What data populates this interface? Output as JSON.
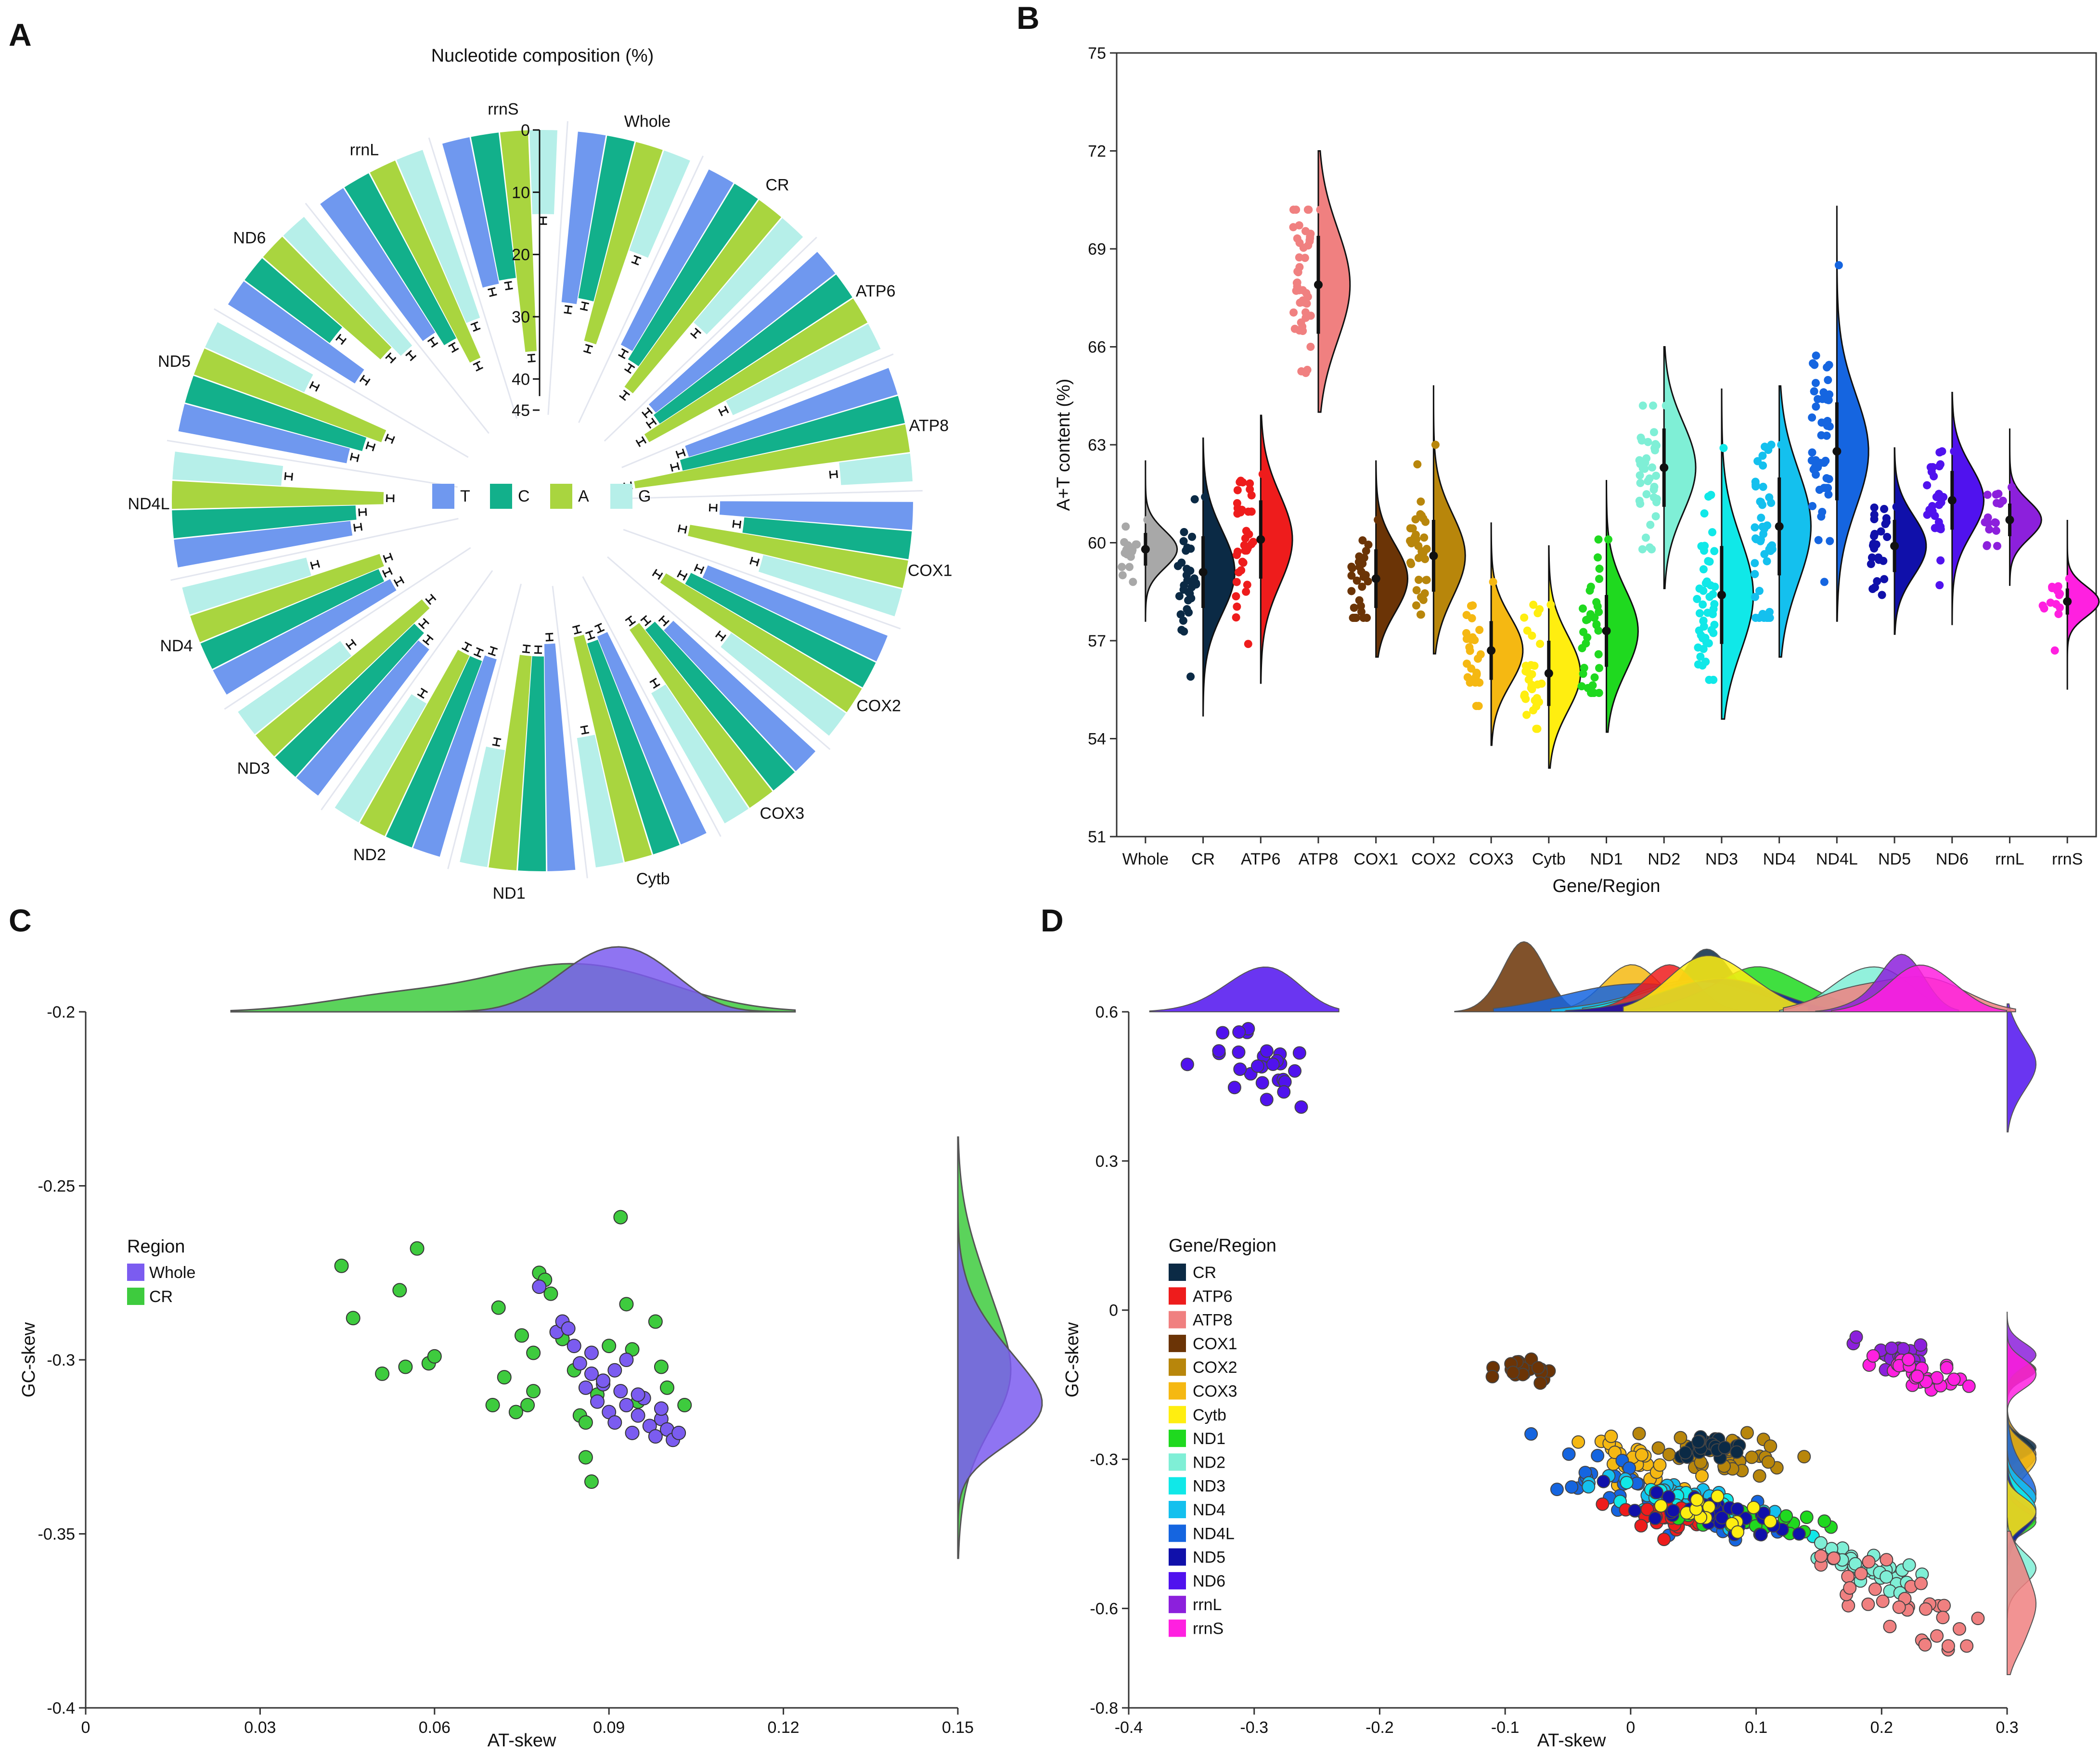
{
  "colors": {
    "T": "#6f98ef",
    "C": "#12b08b",
    "A": "#a9d53f",
    "G": "#b6efe9",
    "Whole": "#a8a8a8",
    "CR": "#0b2a45",
    "ATP6": "#ee1c1c",
    "ATP8": "#f08080",
    "COX1": "#6b3406",
    "COX2": "#b8860b",
    "COX3": "#f5b812",
    "Cytb": "#ffee10",
    "ND1": "#1fd91f",
    "ND2": "#7fefd6",
    "ND3": "#10e8e8",
    "ND4": "#14c0ee",
    "ND4L": "#1565e0",
    "ND5": "#1010aa",
    "ND6": "#5012ee",
    "rrnL": "#8c20dc",
    "rrnS": "#ff20e0",
    "C_whole": "#7b5cf0",
    "C_cr": "#3ecb3e"
  },
  "panels": {
    "A": "A",
    "B": "B",
    "C": "C",
    "D": "D"
  },
  "chart_data": [
    {
      "panel": "A",
      "type": "bar",
      "subtype": "circular-grouped-bar",
      "title": "Nucleotide composition (%)",
      "categories": [
        "Whole",
        "CR",
        "ATP6",
        "ATP8",
        "COX1",
        "COX2",
        "COX3",
        "Cytb",
        "ND1",
        "ND2",
        "ND3",
        "ND4",
        "ND4L",
        "ND5",
        "ND6",
        "rrnL",
        "rrnS"
      ],
      "ylim": [
        0,
        45
      ],
      "yticks": [
        0,
        10,
        20,
        30,
        40,
        45
      ],
      "series": [
        {
          "name": "T",
          "values": [
            27.5,
            31.5,
            36.5,
            35.0,
            31.0,
            31.0,
            31.0,
            36.0,
            36.5,
            33.0,
            29.5,
            32.0,
            28.5,
            27.5,
            24.0,
            27.5,
            24.0
          ]
        },
        {
          "name": "C",
          "values": [
            26.5,
            33.0,
            37.0,
            36.5,
            27.0,
            33.0,
            33.0,
            35.5,
            34.5,
            32.0,
            31.0,
            31.0,
            29.5,
            29.5,
            17.0,
            30.0,
            23.5
          ]
        },
        {
          "name": "A",
          "values": [
            33.0,
            37.0,
            40.0,
            44.5,
            35.5,
            36.5,
            34.5,
            37.0,
            34.5,
            32.0,
            34.5,
            32.0,
            34.0,
            32.0,
            25.0,
            34.5,
            35.5
          ]
        },
        {
          "name": "G",
          "values": [
            17.0,
            22.0,
            26.0,
            11.5,
            23.0,
            22.5,
            24.0,
            21.0,
            19.0,
            22.0,
            20.0,
            20.5,
            17.5,
            17.5,
            27.0,
            28.5,
            13.5
          ]
        }
      ]
    },
    {
      "panel": "B",
      "type": "scatter",
      "subtype": "raincloud",
      "xlabel": "Gene/Region",
      "ylabel": "A+T content (%)",
      "ylim": [
        51,
        75
      ],
      "yticks": [
        51,
        54,
        57,
        60,
        63,
        66,
        69,
        72,
        75
      ],
      "categories": [
        "Whole",
        "CR",
        "ATP6",
        "ATP8",
        "COX1",
        "COX2",
        "COX3",
        "Cytb",
        "ND1",
        "ND2",
        "ND3",
        "ND4",
        "ND4L",
        "ND5",
        "ND6",
        "rrnL",
        "rrnS"
      ],
      "mean": [
        59.8,
        59.1,
        60.1,
        67.9,
        58.9,
        59.6,
        56.7,
        56.0,
        57.3,
        62.3,
        58.4,
        60.5,
        62.8,
        59.9,
        61.3,
        60.7,
        58.2
      ],
      "sd": [
        0.5,
        1.1,
        1.2,
        1.5,
        0.9,
        1.1,
        0.9,
        1.0,
        1.1,
        1.2,
        1.5,
        1.5,
        1.5,
        0.8,
        0.9,
        0.5,
        0.4
      ],
      "min": [
        58.8,
        55.9,
        56.9,
        65.2,
        57.7,
        57.8,
        55.0,
        54.3,
        55.4,
        59.8,
        55.8,
        57.7,
        58.8,
        58.4,
        58.7,
        59.9,
        56.7
      ],
      "max": [
        60.7,
        61.4,
        62.1,
        70.2,
        60.7,
        63.0,
        58.8,
        58.1,
        60.1,
        64.2,
        62.9,
        63.0,
        68.5,
        61.1,
        62.8,
        61.7,
        58.9
      ]
    },
    {
      "panel": "C",
      "type": "scatter",
      "xlabel": "AT-skew",
      "ylabel": "GC-skew",
      "xlim": [
        0,
        0.15
      ],
      "ylim": [
        -0.4,
        -0.2
      ],
      "xticks": [
        0,
        0.03,
        0.06,
        0.09,
        0.12,
        0.15
      ],
      "yticks": [
        -0.4,
        -0.35,
        -0.3,
        -0.25,
        -0.2
      ],
      "legend_title": "Region",
      "legend": [
        "Whole",
        "CR"
      ],
      "series": [
        {
          "name": "Whole",
          "x": [
            0.081,
            0.082,
            0.084,
            0.085,
            0.086,
            0.087,
            0.088,
            0.089,
            0.09,
            0.091,
            0.092,
            0.093,
            0.094,
            0.095,
            0.096,
            0.097,
            0.098,
            0.099,
            0.1,
            0.101,
            0.102,
            0.083,
            0.087,
            0.091,
            0.095,
            0.099,
            0.078,
            0.089,
            0.093
          ],
          "y": [
            -0.292,
            -0.289,
            -0.296,
            -0.301,
            -0.308,
            -0.304,
            -0.312,
            -0.307,
            -0.315,
            -0.318,
            -0.309,
            -0.313,
            -0.321,
            -0.316,
            -0.311,
            -0.319,
            -0.322,
            -0.317,
            -0.32,
            -0.323,
            -0.321,
            -0.291,
            -0.298,
            -0.303,
            -0.31,
            -0.314,
            -0.279,
            -0.306,
            -0.3
          ]
        },
        {
          "name": "CR",
          "x": [
            0.044,
            0.046,
            0.051,
            0.054,
            0.055,
            0.057,
            0.059,
            0.06,
            0.07,
            0.071,
            0.072,
            0.074,
            0.075,
            0.076,
            0.077,
            0.078,
            0.079,
            0.08,
            0.082,
            0.084,
            0.085,
            0.086,
            0.087,
            0.088,
            0.089,
            0.09,
            0.092,
            0.093,
            0.094,
            0.095,
            0.098,
            0.099,
            0.1,
            0.103,
            0.077,
            0.086
          ],
          "y": [
            -0.273,
            -0.288,
            -0.304,
            -0.28,
            -0.302,
            -0.268,
            -0.301,
            -0.299,
            -0.313,
            -0.285,
            -0.305,
            -0.315,
            -0.293,
            -0.313,
            -0.309,
            -0.275,
            -0.277,
            -0.281,
            -0.294,
            -0.303,
            -0.316,
            -0.328,
            -0.335,
            -0.31,
            -0.306,
            -0.296,
            -0.259,
            -0.284,
            -0.297,
            -0.312,
            -0.289,
            -0.302,
            -0.308,
            -0.313,
            -0.298,
            -0.318
          ]
        }
      ]
    },
    {
      "panel": "D",
      "type": "scatter",
      "xlabel": "AT-skew",
      "ylabel": "GC-skew",
      "xlim": [
        -0.4,
        0.3
      ],
      "ylim": [
        -0.8,
        0.6
      ],
      "xticks": [
        -0.4,
        -0.3,
        -0.2,
        -0.1,
        0,
        0.1,
        0.2,
        0.3
      ],
      "yticks": [
        -0.8,
        -0.6,
        -0.3,
        0,
        0.3,
        0.6
      ],
      "legend_title": "Gene/Region",
      "legend": [
        "CR",
        "ATP6",
        "ATP8",
        "COX1",
        "COX2",
        "COX3",
        "Cytb",
        "ND1",
        "ND2",
        "ND3",
        "ND4",
        "ND4L",
        "ND5",
        "ND6",
        "rrnL",
        "rrnS"
      ],
      "clusters": [
        {
          "name": "ND6",
          "cx": -0.295,
          "cy": 0.485,
          "sx": 0.022,
          "sy": 0.035,
          "slope": -0.7,
          "n": 28
        },
        {
          "name": "COX1",
          "cx": -0.083,
          "cy": -0.125,
          "sx": 0.012,
          "sy": 0.012,
          "slope": -0.8,
          "n": 22
        },
        {
          "name": "COX2",
          "cx": 0.078,
          "cy": -0.29,
          "sx": 0.025,
          "sy": 0.02,
          "slope": -0.3,
          "n": 45
        },
        {
          "name": "CR",
          "cx": 0.065,
          "cy": -0.275,
          "sx": 0.015,
          "sy": 0.012,
          "slope": -0.2,
          "n": 22
        },
        {
          "name": "COX3",
          "cx": 0.0,
          "cy": -0.3,
          "sx": 0.018,
          "sy": 0.015,
          "slope": -0.8,
          "n": 30
        },
        {
          "name": "ND4L",
          "cx": 0.0,
          "cy": -0.36,
          "sx": 0.05,
          "sy": 0.03,
          "slope": -0.85,
          "n": 40
        },
        {
          "name": "ND4",
          "cx": 0.05,
          "cy": -0.39,
          "sx": 0.04,
          "sy": 0.02,
          "slope": -0.5,
          "n": 35
        },
        {
          "name": "ND3",
          "cx": 0.06,
          "cy": -0.4,
          "sx": 0.04,
          "sy": 0.02,
          "slope": -0.5,
          "n": 40
        },
        {
          "name": "ATP6",
          "cx": 0.03,
          "cy": -0.42,
          "sx": 0.018,
          "sy": 0.015,
          "slope": -0.5,
          "n": 30
        },
        {
          "name": "ND1",
          "cx": 0.1,
          "cy": -0.42,
          "sx": 0.025,
          "sy": 0.015,
          "slope": -0.3,
          "n": 25
        },
        {
          "name": "ND5",
          "cx": 0.07,
          "cy": -0.41,
          "sx": 0.035,
          "sy": 0.018,
          "slope": -0.5,
          "n": 35
        },
        {
          "name": "Cytb",
          "cx": 0.05,
          "cy": -0.4,
          "sx": 0.03,
          "sy": 0.015,
          "slope": -0.5,
          "n": 15
        },
        {
          "name": "ND2",
          "cx": 0.185,
          "cy": -0.52,
          "sx": 0.02,
          "sy": 0.02,
          "slope": -0.4,
          "n": 30
        },
        {
          "name": "ATP8",
          "cx": 0.21,
          "cy": -0.58,
          "sx": 0.03,
          "sy": 0.04,
          "slope": -1.2,
          "n": 35
        },
        {
          "name": "rrnL",
          "cx": 0.21,
          "cy": -0.09,
          "sx": 0.015,
          "sy": 0.015,
          "slope": -0.5,
          "n": 25
        },
        {
          "name": "rrnS",
          "cx": 0.235,
          "cy": -0.135,
          "sx": 0.02,
          "sy": 0.015,
          "slope": -0.5,
          "n": 28
        }
      ]
    }
  ]
}
